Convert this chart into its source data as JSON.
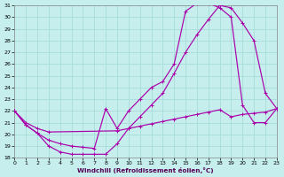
{
  "xlabel": "Windchill (Refroidissement éolien,°C)",
  "xlim": [
    0,
    23
  ],
  "ylim": [
    18,
    31
  ],
  "xticks": [
    0,
    1,
    2,
    3,
    4,
    5,
    6,
    7,
    8,
    9,
    10,
    11,
    12,
    13,
    14,
    15,
    16,
    17,
    18,
    19,
    20,
    21,
    22,
    23
  ],
  "yticks": [
    18,
    19,
    20,
    21,
    22,
    23,
    24,
    25,
    26,
    27,
    28,
    29,
    30,
    31
  ],
  "bg_color": "#c5eeed",
  "grid_color": "#a8dcdc",
  "line_color": "#aa00aa",
  "curve1_x": [
    0,
    1,
    2,
    3,
    4,
    5,
    6,
    7,
    8,
    9,
    10,
    11,
    12,
    13,
    14,
    15,
    16,
    17,
    18,
    19,
    20,
    21,
    22,
    23
  ],
  "curve1_y": [
    22.0,
    20.8,
    20.1,
    19.0,
    18.5,
    18.3,
    18.3,
    18.3,
    18.3,
    19.2,
    20.5,
    21.5,
    22.5,
    23.5,
    25.2,
    27.0,
    28.5,
    29.8,
    31.0,
    30.8,
    29.5,
    28.0,
    23.5,
    22.2
  ],
  "curve2_x": [
    0,
    1,
    2,
    3,
    4,
    5,
    6,
    7,
    8,
    9,
    10,
    11,
    12,
    13,
    14,
    15,
    16,
    17,
    18,
    19,
    20,
    21,
    22,
    23
  ],
  "curve2_y": [
    22.0,
    20.8,
    20.1,
    19.5,
    19.2,
    19.0,
    18.9,
    18.8,
    22.2,
    20.5,
    22.0,
    23.0,
    24.0,
    24.5,
    26.0,
    30.5,
    31.2,
    31.2,
    30.8,
    30.0,
    22.5,
    21.0,
    21.0,
    22.2
  ],
  "curve3_x": [
    0,
    1,
    2,
    3,
    9,
    10,
    11,
    12,
    13,
    14,
    15,
    16,
    17,
    18,
    19,
    20,
    21,
    22,
    23
  ],
  "curve3_y": [
    22.0,
    21.0,
    20.5,
    20.2,
    20.3,
    20.5,
    20.7,
    20.9,
    21.1,
    21.3,
    21.5,
    21.7,
    21.9,
    22.1,
    21.5,
    21.7,
    21.8,
    21.9,
    22.2
  ]
}
